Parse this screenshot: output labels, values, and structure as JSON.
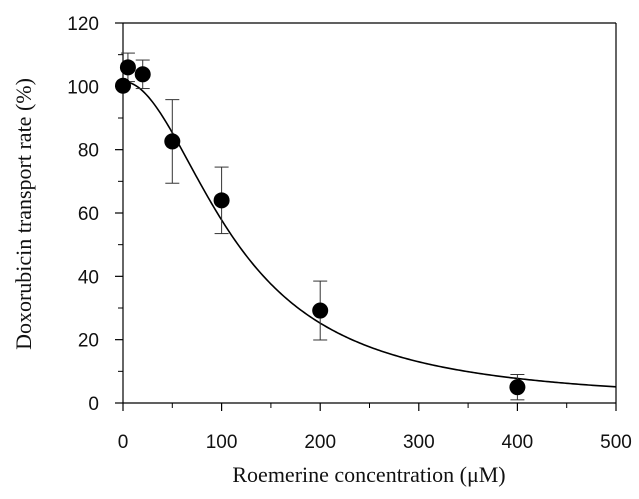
{
  "chart_data": {
    "type": "scatter",
    "xlabel": "Roemerine concentration (μM)",
    "ylabel": "Doxorubicin transport rate (%)",
    "xlim": [
      0,
      500
    ],
    "ylim": [
      0,
      120
    ],
    "x_ticks": [
      "0",
      "100",
      "200",
      "300",
      "400",
      "500"
    ],
    "y_ticks": [
      "0",
      "20",
      "40",
      "60",
      "80",
      "100",
      "120"
    ],
    "grid": false,
    "legend": "none",
    "series": [
      {
        "points": [
          {
            "x": 0,
            "y": 100.2,
            "err": 0
          },
          {
            "x": 5,
            "y": 106.0,
            "err": 4.5
          },
          {
            "x": 20,
            "y": 103.8,
            "err": 4.5
          },
          {
            "x": 50,
            "y": 82.6,
            "err": 13.2
          },
          {
            "x": 100,
            "y": 64.0,
            "err": 10.5
          },
          {
            "x": 200,
            "y": 29.2,
            "err": 9.3
          },
          {
            "x": 400,
            "y": 5.0,
            "err": 4.0
          }
        ]
      }
    ],
    "fit_curve": {
      "type": "sigmoid",
      "top": 101.5,
      "half_x": 115,
      "slope": 2.0
    },
    "colors": {
      "marker": "#000000",
      "line": "#000000",
      "axis": "#000000"
    }
  }
}
